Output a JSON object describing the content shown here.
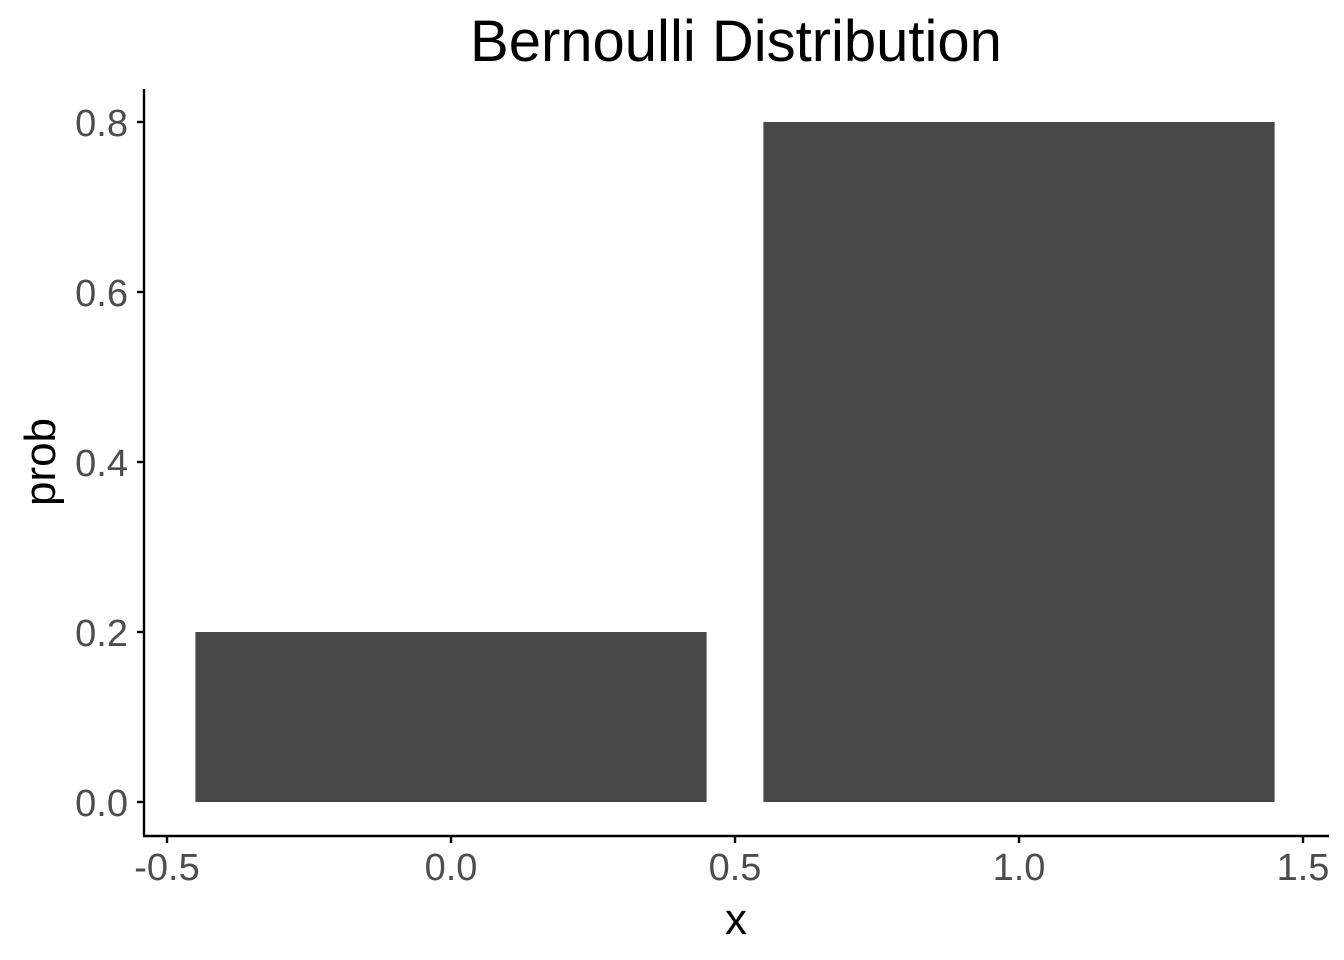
{
  "chart_data": {
    "type": "bar",
    "title": "Bernoulli Distribution",
    "xlabel": "x",
    "ylabel": "prob",
    "x": [
      0,
      1
    ],
    "values": [
      0.2,
      0.8
    ],
    "bar_width": 0.9,
    "xlim": [
      -0.5,
      1.5
    ],
    "ylim": [
      0,
      0.8
    ],
    "x_ticks": [
      -0.5,
      0.0,
      0.5,
      1.0,
      1.5
    ],
    "x_tick_labels": [
      "-0.5",
      "0.0",
      "0.5",
      "1.0",
      "1.5"
    ],
    "y_ticks": [
      0.0,
      0.2,
      0.4,
      0.6,
      0.8
    ],
    "y_tick_labels": [
      "0.0",
      "0.2",
      "0.4",
      "0.6",
      "0.8"
    ],
    "grid": false,
    "legend": "none",
    "bar_color": "#474747",
    "axis_color": "#000000",
    "tick_label_color": "#4d4d4d"
  }
}
